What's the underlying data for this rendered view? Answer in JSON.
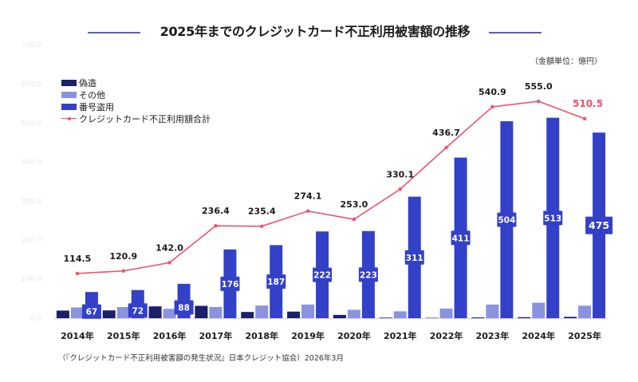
{
  "chart_data": {
    "type": "bar",
    "title": "2025年までのクレジットカード不正利用被害額の推移",
    "unit_note": "（金額単位：億円）",
    "source": "（『クレジットカード不正利用被害額の発生状況』日本クレジット協会）2026年3月",
    "categories": [
      "2014年",
      "2015年",
      "2016年",
      "2017年",
      "2018年",
      "2019年",
      "2020年",
      "2021年",
      "2022年",
      "2023年",
      "2024年",
      "2025年"
    ],
    "series": [
      {
        "name": "偽造",
        "type": "bar",
        "color": "#1b2068",
        "values": [
          19.5,
          20.0,
          30.3,
          31.6,
          16.0,
          16.9,
          8.4,
          1.5,
          1.0,
          2.0,
          2.6,
          3.5
        ]
      },
      {
        "name": "その他",
        "type": "bar",
        "color": "#8a93e0",
        "values": [
          27.5,
          28.6,
          23.9,
          28.8,
          32.4,
          35.1,
          21.6,
          17.6,
          24.7,
          34.9,
          39.6,
          32.0
        ]
      },
      {
        "name": "番号盗用",
        "type": "bar",
        "color": "#3340c8",
        "values": [
          67,
          72,
          88,
          176,
          187,
          222,
          223,
          311,
          411,
          504,
          513,
          475
        ],
        "labels": [
          "67",
          "72",
          "88",
          "176",
          "187",
          "222",
          "223",
          "311",
          "411",
          "504",
          "513",
          "475"
        ]
      },
      {
        "name": "クレジットカード不正利用額合計",
        "type": "line",
        "color": "#f0506e",
        "values": [
          114.5,
          120.9,
          142.0,
          236.4,
          235.4,
          274.1,
          253.0,
          330.1,
          436.7,
          540.9,
          555.0,
          510.5
        ],
        "labels": [
          "114.5",
          "120.9",
          "142.0",
          "236.4",
          "235.4",
          "274.1",
          "253.0",
          "330.1",
          "436.7",
          "540.9",
          "555.0",
          "510.5"
        ]
      }
    ],
    "highlight_last": true,
    "highlight_color": "#f0506e",
    "yticks": [
      "0.0",
      "100.0",
      "200.0",
      "300.0",
      "400.0",
      "500.0",
      "600.0",
      "700.0"
    ],
    "ylim": [
      0,
      700
    ],
    "xlabel": "",
    "ylabel": "",
    "grid": false,
    "legend_position": "top-left"
  },
  "legend": {
    "items": [
      {
        "label": "偽造",
        "color": "#1b2068"
      },
      {
        "label": "その他",
        "color": "#8a93e0"
      },
      {
        "label": "番号盗用",
        "color": "#3340c8"
      },
      {
        "label": "クレジットカード不正利用額合計",
        "color": "#f0506e"
      }
    ]
  }
}
